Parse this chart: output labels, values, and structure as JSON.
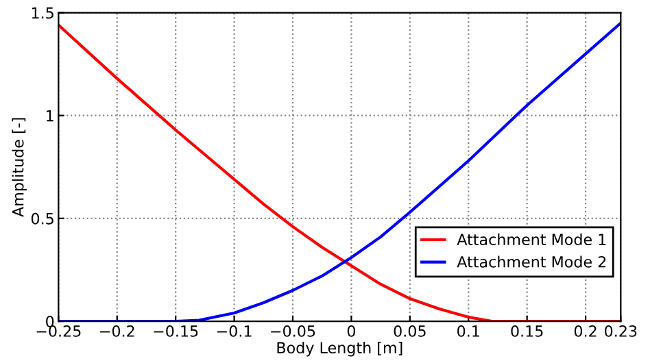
{
  "chart_data": {
    "type": "line",
    "xlabel": "Body Length [m]",
    "ylabel": "Amplitude [-]",
    "xlim": [
      -0.25,
      0.23
    ],
    "xticks": [
      -0.25,
      -0.2,
      -0.15,
      -0.1,
      -0.05,
      0,
      0.05,
      0.1,
      0.15,
      0.2,
      0.23
    ],
    "ylim": [
      0,
      1.5
    ],
    "yticks": [
      0,
      0.5,
      1,
      1.5
    ],
    "grid": true,
    "legend": "bottom right",
    "line_style": "solid",
    "marker": "none",
    "series": [
      {
        "name": "Attachment Mode 1",
        "color": "#ff0000",
        "x": [
          -0.25,
          -0.2,
          -0.15,
          -0.1,
          -0.075,
          -0.05,
          -0.025,
          0,
          0.025,
          0.05,
          0.075,
          0.1,
          0.12,
          0.15,
          0.23
        ],
        "values": [
          1.44,
          1.18,
          0.93,
          0.69,
          0.57,
          0.46,
          0.36,
          0.27,
          0.18,
          0.11,
          0.06,
          0.02,
          0.0,
          0.0,
          0.0
        ]
      },
      {
        "name": "Attachment Mode 2",
        "color": "#0000ff",
        "x": [
          -0.25,
          -0.2,
          -0.15,
          -0.13,
          -0.1,
          -0.075,
          -0.05,
          -0.025,
          0,
          0.025,
          0.05,
          0.1,
          0.15,
          0.2,
          0.23
        ],
        "values": [
          0.0,
          0.0,
          0.0,
          0.005,
          0.04,
          0.09,
          0.15,
          0.22,
          0.31,
          0.41,
          0.53,
          0.78,
          1.05,
          1.3,
          1.45
        ]
      }
    ]
  }
}
